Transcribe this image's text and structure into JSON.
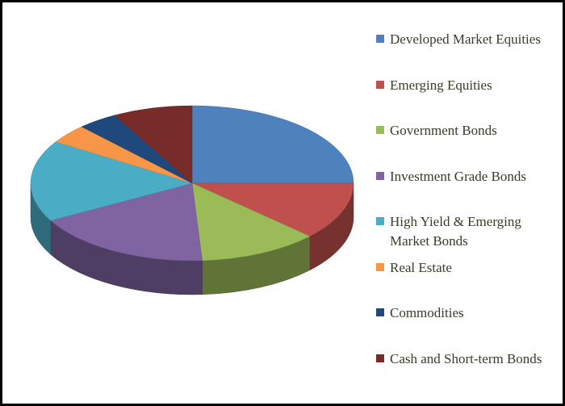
{
  "chart_data": {
    "type": "pie",
    "categories": [
      "Developed Market Equities",
      "Emerging Equities",
      "Government Bonds",
      "Investment Grade Bonds",
      "High Yield & Emerging Market Bonds",
      "Real Estate",
      "Commodities",
      "Cash and Short-term Bonds"
    ],
    "values": [
      25,
      12,
      12,
      18,
      17,
      4,
      4,
      8
    ],
    "colors": [
      "#4f81bd",
      "#c0504d",
      "#9bbb59",
      "#8064a2",
      "#4bacc6",
      "#f79646",
      "#1f497d",
      "#772c2a"
    ],
    "legend": "right"
  }
}
